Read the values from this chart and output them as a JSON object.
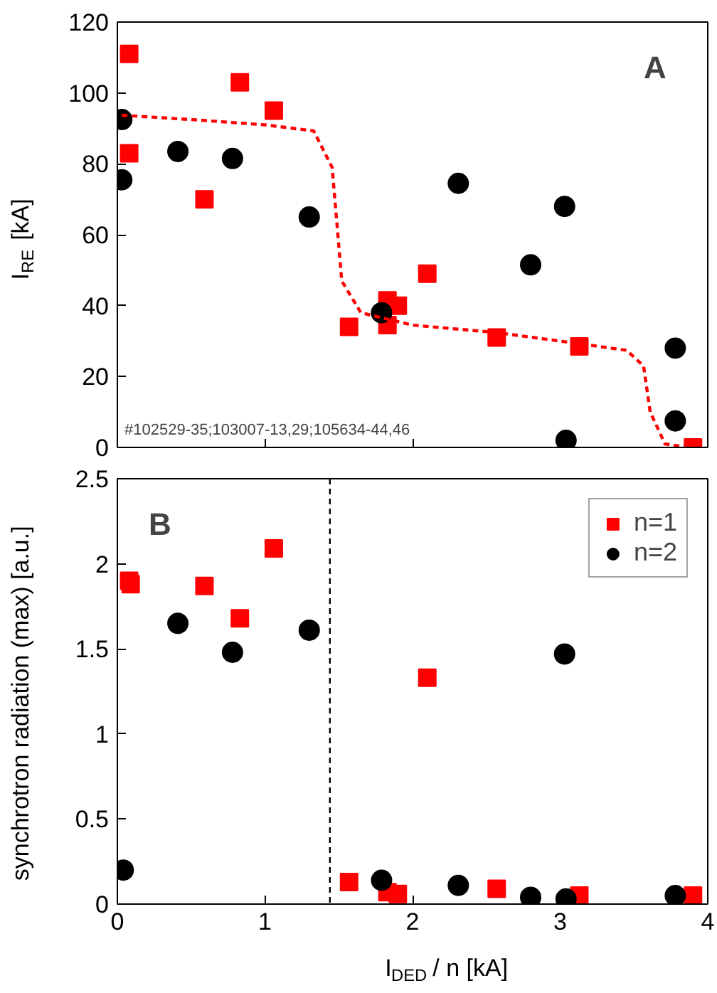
{
  "chart_data": [
    {
      "type": "scatter",
      "ylabel": "I$_{RE}$ [kA]",
      "xlim": [
        0,
        4
      ],
      "xticks": [
        0,
        1,
        2,
        3,
        4
      ],
      "ylim": [
        0,
        120
      ],
      "yticks": [
        0,
        20,
        40,
        60,
        80,
        100,
        120
      ],
      "tick_labels": "y",
      "grid": false,
      "legend": false,
      "annotations": [
        "A",
        "#102529-35;103007-13,29;105634-44,46"
      ],
      "series": [
        {
          "color": "#ff0000",
          "marker": "square",
          "x": [
            0.08,
            0.08,
            0.59,
            0.83,
            1.06,
            1.57,
            1.83,
            1.9,
            1.83,
            2.1,
            2.57,
            3.13,
            3.9
          ],
          "values": [
            111,
            83,
            70,
            103,
            95,
            34,
            41.5,
            40,
            34.5,
            49,
            31,
            28.5,
            0
          ]
        },
        {
          "color": "#000000",
          "marker": "circle",
          "x": [
            0.03,
            0.03,
            0.41,
            0.78,
            1.3,
            1.79,
            2.31,
            2.8,
            3.03,
            3.04,
            3.78,
            3.78
          ],
          "values": [
            92.5,
            75.5,
            83.5,
            81.5,
            65,
            38,
            74.5,
            51.5,
            68,
            2,
            28,
            7.5
          ]
        },
        {
          "type": "line",
          "color": "#ff0000",
          "line_style": "dashed",
          "marker": "none",
          "x": [
            0.03,
            0.5,
            1.0,
            1.33,
            1.455,
            1.49,
            1.52,
            1.65,
            2.0,
            2.57,
            3.0,
            3.45,
            3.565,
            3.61,
            3.71,
            3.87
          ],
          "values": [
            93.7,
            92.5,
            91,
            89.3,
            79,
            62,
            47,
            38,
            34.5,
            32.4,
            30,
            27.4,
            23,
            10,
            1,
            0
          ]
        }
      ]
    },
    {
      "type": "scatter",
      "xlabel": "I$_{DED}$ / n [kA]",
      "ylabel": "synchrotron radiation (max) [a.u.]",
      "xlim": [
        0,
        4
      ],
      "xticks": [
        0,
        1,
        2,
        3,
        4
      ],
      "ylim": [
        0,
        2.5
      ],
      "yticks": [
        0,
        0.5,
        1,
        1.5,
        2,
        2.5
      ],
      "grid": false,
      "legend": "top right",
      "annotations": [
        "B"
      ],
      "ref_lines": [
        {
          "axis": "x",
          "value": 1.44,
          "label": null,
          "color": "#000000",
          "line_style": "dashed"
        }
      ],
      "series": [
        {
          "name": "n=1",
          "color": "#ff0000",
          "marker": "square",
          "x": [
            0.08,
            0.09,
            0.59,
            0.83,
            1.06,
            1.57,
            1.83,
            1.9,
            2.1,
            2.57,
            3.13,
            3.9
          ],
          "values": [
            1.9,
            1.88,
            1.87,
            1.68,
            2.09,
            0.13,
            0.07,
            0.06,
            1.33,
            0.09,
            0.05,
            0.05
          ]
        },
        {
          "name": "n=2",
          "color": "#000000",
          "marker": "circle",
          "x": [
            0.04,
            0.41,
            0.78,
            1.3,
            1.79,
            2.31,
            2.8,
            3.03,
            3.04,
            3.78
          ],
          "values": [
            0.2,
            1.65,
            1.48,
            1.61,
            0.14,
            0.11,
            0.04,
            1.47,
            0.03,
            0.05
          ]
        }
      ]
    }
  ]
}
